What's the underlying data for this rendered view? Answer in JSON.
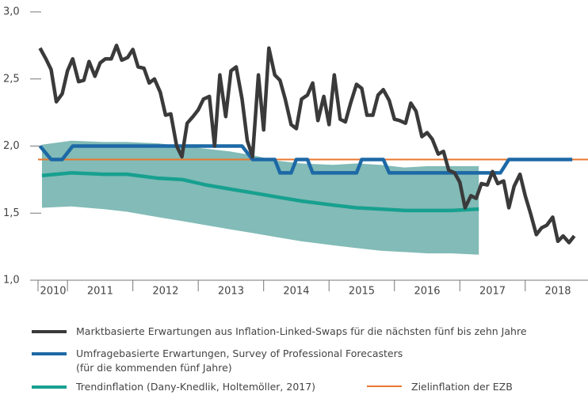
{
  "chart_data": {
    "type": "line",
    "xlim": [
      2010.55,
      2018.96
    ],
    "ylim": [
      1,
      3
    ],
    "yticks": [
      {
        "value": 1,
        "label": "1,0"
      },
      {
        "value": 1.5,
        "label": "1,5"
      },
      {
        "value": 2,
        "label": "2,0"
      },
      {
        "value": 2.5,
        "label": "2,5"
      },
      {
        "value": 3,
        "label": "3,0"
      }
    ],
    "xticks": [
      {
        "value": 2010.5,
        "label": "2010"
      },
      {
        "value": 2011.5,
        "label": "2011"
      },
      {
        "value": 2012.5,
        "label": "2012"
      },
      {
        "value": 2013.5,
        "label": "2013"
      },
      {
        "value": 2014.5,
        "label": "2014"
      },
      {
        "value": 2015.5,
        "label": "2015"
      },
      {
        "value": 2016.5,
        "label": "2016"
      },
      {
        "value": 2017.5,
        "label": "2017"
      },
      {
        "value": 2018.5,
        "label": "2018"
      }
    ],
    "band": {
      "color": "#82bbb7",
      "x": [
        2010.61,
        2011.06,
        2011.55,
        2011.91,
        2012.39,
        2012.76,
        2013.12,
        2013.48,
        2013.85,
        2014.21,
        2014.58,
        2015.06,
        2015.42,
        2015.79,
        2016.15,
        2016.52,
        2016.88,
        2017.29
      ],
      "upper": [
        2.01,
        2.04,
        2.03,
        2.03,
        2.02,
        2.0,
        1.98,
        1.96,
        1.93,
        1.89,
        1.87,
        1.86,
        1.87,
        1.86,
        1.84,
        1.85,
        1.85,
        1.85
      ],
      "lower": [
        1.54,
        1.55,
        1.53,
        1.51,
        1.47,
        1.44,
        1.41,
        1.38,
        1.35,
        1.32,
        1.29,
        1.26,
        1.24,
        1.22,
        1.21,
        1.2,
        1.2,
        1.19
      ]
    },
    "hline": {
      "name": "Zielinflation der EZB",
      "color": "#e8772e",
      "value": 1.9
    },
    "series": [
      {
        "name": "Marktbasierte Erwartungen aus Inflation-Linked-Swaps für die nächsten fünf bis zehn Jahre",
        "color": "#3a3a3a",
        "x": [
          2010.58,
          2010.67,
          2010.75,
          2010.83,
          2010.92,
          2011.0,
          2011.08,
          2011.17,
          2011.25,
          2011.33,
          2011.42,
          2011.5,
          2011.58,
          2011.67,
          2011.75,
          2011.83,
          2011.92,
          2012.0,
          2012.08,
          2012.17,
          2012.25,
          2012.33,
          2012.42,
          2012.5,
          2012.58,
          2012.67,
          2012.75,
          2012.83,
          2012.92,
          2013.0,
          2013.08,
          2013.17,
          2013.25,
          2013.33,
          2013.42,
          2013.5,
          2013.58,
          2013.67,
          2013.75,
          2013.83,
          2013.92,
          2014.0,
          2014.08,
          2014.17,
          2014.25,
          2014.33,
          2014.42,
          2014.5,
          2014.58,
          2014.67,
          2014.75,
          2014.83,
          2014.92,
          2015.0,
          2015.08,
          2015.17,
          2015.25,
          2015.33,
          2015.42,
          2015.5,
          2015.58,
          2015.67,
          2015.75,
          2015.83,
          2015.92,
          2016.0,
          2016.08,
          2016.17,
          2016.25,
          2016.33,
          2016.42,
          2016.5,
          2016.58,
          2016.67,
          2016.75,
          2016.83,
          2016.92,
          2017.0,
          2017.08,
          2017.17,
          2017.25,
          2017.33,
          2017.42,
          2017.5,
          2017.58,
          2017.67,
          2017.75,
          2017.83,
          2017.92,
          2018.0,
          2018.08,
          2018.17,
          2018.25,
          2018.33,
          2018.42,
          2018.5,
          2018.58,
          2018.67,
          2018.75
        ],
        "values": [
          2.73,
          2.65,
          2.57,
          2.33,
          2.39,
          2.56,
          2.65,
          2.48,
          2.49,
          2.63,
          2.52,
          2.62,
          2.65,
          2.65,
          2.75,
          2.64,
          2.66,
          2.72,
          2.59,
          2.58,
          2.47,
          2.5,
          2.4,
          2.23,
          2.24,
          2.0,
          1.92,
          2.17,
          2.22,
          2.27,
          2.35,
          2.37,
          2.0,
          2.53,
          2.22,
          2.56,
          2.59,
          2.35,
          2.04,
          1.92,
          2.53,
          2.12,
          2.73,
          2.53,
          2.49,
          2.35,
          2.16,
          2.13,
          2.35,
          2.38,
          2.47,
          2.19,
          2.37,
          2.16,
          2.53,
          2.2,
          2.18,
          2.32,
          2.46,
          2.43,
          2.23,
          2.23,
          2.38,
          2.42,
          2.34,
          2.2,
          2.19,
          2.17,
          2.32,
          2.26,
          2.07,
          2.1,
          2.05,
          1.94,
          1.96,
          1.82,
          1.8,
          1.73,
          1.54,
          1.63,
          1.61,
          1.72,
          1.71,
          1.81,
          1.72,
          1.74,
          1.54,
          1.7,
          1.79,
          1.63,
          1.5,
          1.34,
          1.39,
          1.41,
          1.47,
          1.29,
          1.33,
          1.28,
          1.33
        ]
      },
      {
        "name": "Umfragebasierte Erwartungen, Survey of Professional Forecasters\n(für die kommenden fünf Jahre)",
        "color": "#1d69a6",
        "x": [
          2010.58,
          2010.75,
          2010.92,
          2011.08,
          2013.67,
          2013.83,
          2014.17,
          2014.25,
          2014.42,
          2014.5,
          2014.67,
          2014.75,
          2015.42,
          2015.5,
          2015.83,
          2015.92,
          2017.62,
          2017.75,
          2018.72
        ],
        "values": [
          2.0,
          1.9,
          1.9,
          2.0,
          2.0,
          1.9,
          1.9,
          1.8,
          1.8,
          1.9,
          1.9,
          1.8,
          1.8,
          1.9,
          1.9,
          1.8,
          1.8,
          1.9,
          1.9
        ]
      },
      {
        "name": "Trendinflation (Dany-Knedlik, Holtemöller, 2017)",
        "color": "#17a08f",
        "x": [
          2010.61,
          2011.06,
          2011.55,
          2011.91,
          2012.39,
          2012.76,
          2013.12,
          2013.48,
          2013.85,
          2014.21,
          2014.58,
          2015.06,
          2015.42,
          2015.79,
          2016.15,
          2016.52,
          2016.88,
          2017.29
        ],
        "values": [
          1.78,
          1.8,
          1.79,
          1.79,
          1.76,
          1.75,
          1.71,
          1.68,
          1.65,
          1.62,
          1.59,
          1.56,
          1.54,
          1.53,
          1.52,
          1.52,
          1.52,
          1.53
        ]
      }
    ]
  }
}
